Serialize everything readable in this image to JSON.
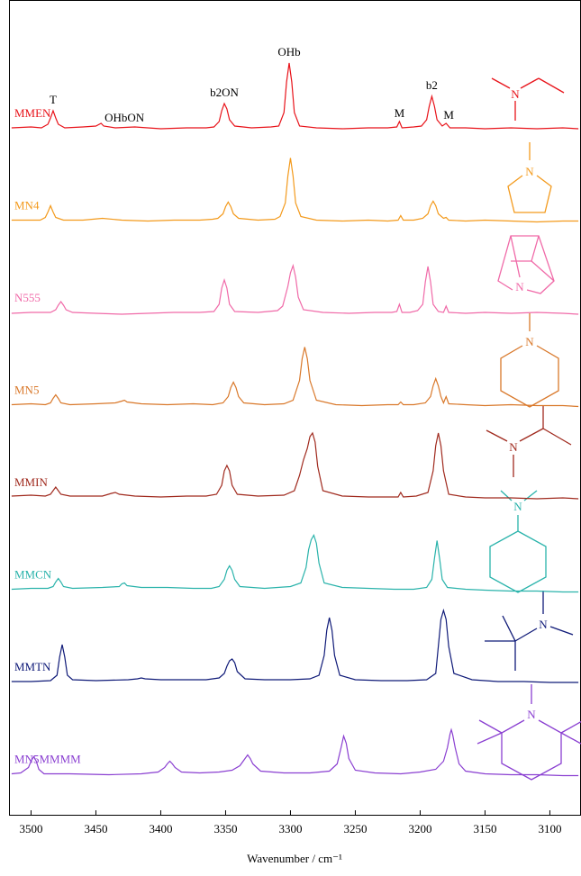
{
  "chart_data": {
    "type": "stacked-line",
    "xlabel": "Wavenumber / cm⁻¹",
    "xlim": [
      3517,
      3076
    ],
    "xticks": [
      3500,
      3450,
      3400,
      3350,
      3300,
      3250,
      3200,
      3150,
      3100
    ],
    "annotations": [
      {
        "text": "T",
        "x": 3483
      },
      {
        "text": "OHbON",
        "x": 3428
      },
      {
        "text": "b2ON",
        "x": 3351
      },
      {
        "text": "OHb",
        "x": 3301
      },
      {
        "text": "M",
        "x": 3216
      },
      {
        "text": "b2",
        "x": 3191
      },
      {
        "text": "M",
        "x": 3178
      }
    ],
    "series": [
      {
        "name": "MMEN",
        "color": "#e8131a",
        "structure_label": "N",
        "x": [
          3515,
          3500,
          3492,
          3487,
          3485,
          3483,
          3481,
          3479,
          3474,
          3460,
          3450,
          3446,
          3444,
          3435,
          3420,
          3400,
          3380,
          3365,
          3359,
          3355,
          3353,
          3351,
          3349,
          3347,
          3343,
          3330,
          3315,
          3309,
          3305,
          3303,
          3301,
          3299,
          3297,
          3293,
          3280,
          3260,
          3240,
          3225,
          3218,
          3216,
          3214,
          3205,
          3199,
          3195,
          3193,
          3191,
          3189,
          3187,
          3183,
          3180,
          3177,
          3165,
          3150,
          3130,
          3110,
          3090,
          3078
        ],
        "values": [
          1,
          2,
          1,
          5,
          12,
          20,
          12,
          5,
          1,
          2,
          3,
          6,
          3,
          1,
          2,
          0,
          1,
          1,
          2,
          8,
          20,
          28,
          22,
          10,
          3,
          1,
          2,
          3,
          18,
          52,
          73,
          52,
          18,
          3,
          1,
          0,
          1,
          1,
          2,
          8,
          1,
          2,
          3,
          10,
          25,
          36,
          25,
          10,
          3,
          6,
          1,
          1,
          0,
          1,
          0,
          1,
          0
        ]
      },
      {
        "name": "MN4",
        "color": "#f39a1c",
        "structure_label": "N",
        "x": [
          3515,
          3500,
          3493,
          3489,
          3487,
          3485,
          3483,
          3481,
          3475,
          3460,
          3445,
          3430,
          3410,
          3390,
          3370,
          3360,
          3356,
          3352,
          3350,
          3348,
          3346,
          3344,
          3340,
          3325,
          3312,
          3308,
          3304,
          3302,
          3300,
          3298,
          3296,
          3292,
          3280,
          3260,
          3240,
          3225,
          3217,
          3215,
          3213,
          3205,
          3198,
          3194,
          3192,
          3190,
          3188,
          3186,
          3182,
          3180,
          3178,
          3165,
          3150,
          3130,
          3110,
          3090,
          3078
        ],
        "values": [
          1,
          1,
          1,
          4,
          10,
          17,
          10,
          4,
          1,
          1,
          3,
          1,
          0,
          1,
          1,
          2,
          3,
          8,
          16,
          21,
          16,
          8,
          3,
          1,
          2,
          5,
          20,
          50,
          70,
          50,
          20,
          5,
          1,
          0,
          1,
          0,
          1,
          6,
          1,
          1,
          3,
          8,
          17,
          22,
          17,
          8,
          3,
          4,
          1,
          0,
          1,
          0,
          -1,
          0,
          0
        ]
      },
      {
        "name": "N555",
        "color": "#f06aa8",
        "structure_label": "N",
        "x": [
          3515,
          3500,
          3485,
          3481,
          3479,
          3477,
          3475,
          3473,
          3468,
          3450,
          3430,
          3410,
          3390,
          3370,
          3359,
          3355,
          3353,
          3351,
          3349,
          3347,
          3343,
          3325,
          3310,
          3306,
          3302,
          3300,
          3298,
          3296,
          3294,
          3290,
          3275,
          3255,
          3235,
          3222,
          3218,
          3216,
          3214,
          3208,
          3202,
          3198,
          3196,
          3194,
          3192,
          3190,
          3186,
          3182,
          3180,
          3178,
          3165,
          3150,
          3130,
          3110,
          3090,
          3078
        ],
        "values": [
          0,
          1,
          1,
          4,
          9,
          13,
          9,
          4,
          1,
          0,
          -1,
          0,
          1,
          1,
          2,
          10,
          28,
          37,
          28,
          10,
          2,
          1,
          3,
          8,
          30,
          45,
          53,
          40,
          18,
          4,
          1,
          0,
          1,
          1,
          2,
          10,
          1,
          1,
          3,
          10,
          35,
          52,
          35,
          10,
          2,
          1,
          8,
          1,
          0,
          1,
          0,
          1,
          0,
          -1
        ]
      },
      {
        "name": "MN5",
        "color": "#d9782a",
        "structure_label": "N",
        "x": [
          3515,
          3500,
          3489,
          3485,
          3483,
          3481,
          3479,
          3477,
          3470,
          3450,
          3435,
          3430,
          3428,
          3426,
          3415,
          3395,
          3375,
          3360,
          3352,
          3348,
          3346,
          3344,
          3342,
          3340,
          3336,
          3320,
          3305,
          3298,
          3293,
          3291,
          3289,
          3287,
          3285,
          3280,
          3265,
          3245,
          3225,
          3217,
          3215,
          3213,
          3205,
          3196,
          3192,
          3190,
          3188,
          3186,
          3184,
          3182,
          3180,
          3178,
          3165,
          3150,
          3130,
          3110,
          3090,
          3078
        ],
        "values": [
          1,
          2,
          1,
          3,
          8,
          12,
          8,
          3,
          1,
          2,
          3,
          5,
          6,
          4,
          2,
          1,
          2,
          1,
          3,
          10,
          20,
          26,
          20,
          10,
          3,
          1,
          2,
          6,
          28,
          52,
          65,
          52,
          28,
          6,
          1,
          0,
          1,
          1,
          4,
          1,
          1,
          3,
          10,
          22,
          30,
          22,
          10,
          3,
          10,
          2,
          1,
          0,
          1,
          0,
          0,
          -1
        ]
      },
      {
        "name": "MMIN",
        "color": "#a02a1e",
        "structure_label": "N",
        "x": [
          3515,
          3500,
          3489,
          3485,
          3483,
          3481,
          3479,
          3477,
          3470,
          3445,
          3438,
          3435,
          3432,
          3420,
          3400,
          3380,
          3365,
          3357,
          3353,
          3351,
          3349,
          3347,
          3345,
          3341,
          3325,
          3305,
          3297,
          3293,
          3290,
          3287,
          3285,
          3283,
          3281,
          3279,
          3275,
          3260,
          3240,
          3225,
          3217,
          3215,
          3213,
          3203,
          3194,
          3190,
          3188,
          3186,
          3184,
          3182,
          3178,
          3165,
          3150,
          3130,
          3110,
          3090,
          3078
        ],
        "values": [
          2,
          3,
          2,
          4,
          8,
          12,
          8,
          4,
          2,
          2,
          5,
          6,
          4,
          2,
          1,
          2,
          2,
          4,
          14,
          30,
          36,
          30,
          14,
          4,
          2,
          3,
          8,
          25,
          42,
          55,
          68,
          72,
          62,
          35,
          8,
          2,
          1,
          1,
          1,
          6,
          1,
          2,
          6,
          30,
          58,
          72,
          58,
          30,
          4,
          1,
          0,
          0,
          -1,
          0,
          -1
        ]
      },
      {
        "name": "MMCN",
        "color": "#2ab3ab",
        "structure_label": "N",
        "x": [
          3515,
          3500,
          3487,
          3483,
          3481,
          3479,
          3477,
          3475,
          3468,
          3445,
          3432,
          3430,
          3428,
          3426,
          3415,
          3395,
          3375,
          3361,
          3355,
          3351,
          3349,
          3347,
          3345,
          3343,
          3339,
          3320,
          3300,
          3292,
          3288,
          3286,
          3284,
          3282,
          3280,
          3278,
          3274,
          3260,
          3240,
          3220,
          3205,
          3195,
          3191,
          3189,
          3187,
          3185,
          3183,
          3179,
          3165,
          3150,
          3130,
          3110,
          3090,
          3078
        ],
        "values": [
          1,
          2,
          2,
          4,
          9,
          13,
          9,
          4,
          2,
          3,
          4,
          7,
          8,
          5,
          3,
          3,
          2,
          2,
          4,
          12,
          22,
          27,
          22,
          12,
          4,
          2,
          4,
          8,
          25,
          45,
          56,
          61,
          52,
          30,
          8,
          3,
          2,
          1,
          1,
          3,
          12,
          35,
          55,
          35,
          12,
          3,
          1,
          0,
          -1,
          -1,
          -2,
          -2
        ]
      },
      {
        "name": "MMTN",
        "color": "#0f1a78",
        "structure_label": "N",
        "x": [
          3515,
          3500,
          3485,
          3480,
          3478,
          3476,
          3474,
          3472,
          3468,
          3450,
          3425,
          3418,
          3415,
          3412,
          3400,
          3380,
          3365,
          3355,
          3351,
          3349,
          3347,
          3345,
          3343,
          3341,
          3335,
          3320,
          3300,
          3285,
          3278,
          3274,
          3272,
          3270,
          3268,
          3266,
          3262,
          3250,
          3230,
          3210,
          3195,
          3188,
          3186,
          3184,
          3182,
          3180,
          3178,
          3174,
          3160,
          3140,
          3120,
          3100,
          3078
        ],
        "values": [
          1,
          1,
          2,
          8,
          28,
          42,
          28,
          8,
          3,
          2,
          3,
          4,
          5,
          4,
          3,
          3,
          3,
          5,
          10,
          18,
          24,
          26,
          22,
          12,
          4,
          3,
          3,
          4,
          8,
          30,
          58,
          72,
          58,
          30,
          8,
          3,
          2,
          2,
          3,
          10,
          40,
          70,
          80,
          70,
          40,
          10,
          3,
          1,
          1,
          0,
          0
        ]
      },
      {
        "name": "MN5MMMM",
        "color": "#8a3fd1",
        "structure_label": "N",
        "x": [
          3515,
          3508,
          3502,
          3500,
          3498,
          3496,
          3494,
          3490,
          3470,
          3440,
          3415,
          3402,
          3397,
          3395,
          3393,
          3391,
          3389,
          3384,
          3370,
          3355,
          3345,
          3339,
          3335,
          3333,
          3331,
          3329,
          3323,
          3305,
          3285,
          3270,
          3264,
          3261,
          3259,
          3257,
          3255,
          3250,
          3235,
          3215,
          3200,
          3188,
          3182,
          3179,
          3177,
          3176,
          3175,
          3173,
          3170,
          3165,
          3150,
          3130,
          3110,
          3090,
          3078
        ],
        "values": [
          1,
          2,
          8,
          15,
          20,
          15,
          6,
          1,
          1,
          0,
          1,
          3,
          8,
          12,
          15,
          12,
          8,
          3,
          2,
          3,
          5,
          10,
          18,
          22,
          18,
          12,
          4,
          2,
          2,
          4,
          12,
          30,
          43,
          35,
          18,
          5,
          2,
          1,
          3,
          6,
          15,
          30,
          45,
          50,
          45,
          30,
          12,
          4,
          1,
          0,
          0,
          -1,
          -1
        ]
      }
    ]
  }
}
